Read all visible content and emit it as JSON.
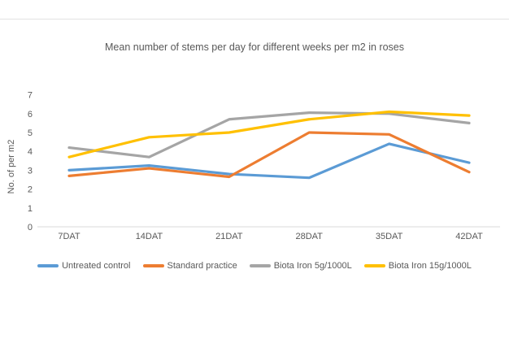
{
  "page": {
    "background": "#ffffff",
    "divider_color": "#e3e3e3"
  },
  "chart_data": {
    "type": "line",
    "title": "Mean number of stems per day for different weeks per m2 in roses",
    "xlabel": "",
    "ylabel": "No. of per m2",
    "categories": [
      "7DAT",
      "14DAT",
      "21DAT",
      "28DAT",
      "35DAT",
      "42DAT"
    ],
    "series": [
      {
        "name": "Untreated control",
        "color": "#5B9BD5",
        "values": [
          3.0,
          3.25,
          2.8,
          2.6,
          4.4,
          3.4
        ]
      },
      {
        "name": "Standard practice",
        "color": "#ED7D31",
        "values": [
          2.7,
          3.1,
          2.65,
          5.0,
          4.9,
          2.9
        ]
      },
      {
        "name": "Biota Iron 5g/1000L",
        "color": "#A5A5A5",
        "values": [
          4.2,
          3.7,
          5.7,
          6.05,
          6.0,
          5.5
        ]
      },
      {
        "name": "Biota Iron 15g/1000L",
        "color": "#FFC000",
        "values": [
          3.7,
          4.75,
          5.0,
          5.7,
          6.1,
          5.9
        ]
      }
    ],
    "ylim": [
      0,
      7
    ],
    "ytick_step": 1,
    "grid": "off",
    "legend_position": "bottom",
    "axis_color": "#d9d9d9",
    "text_color": "#595959"
  }
}
